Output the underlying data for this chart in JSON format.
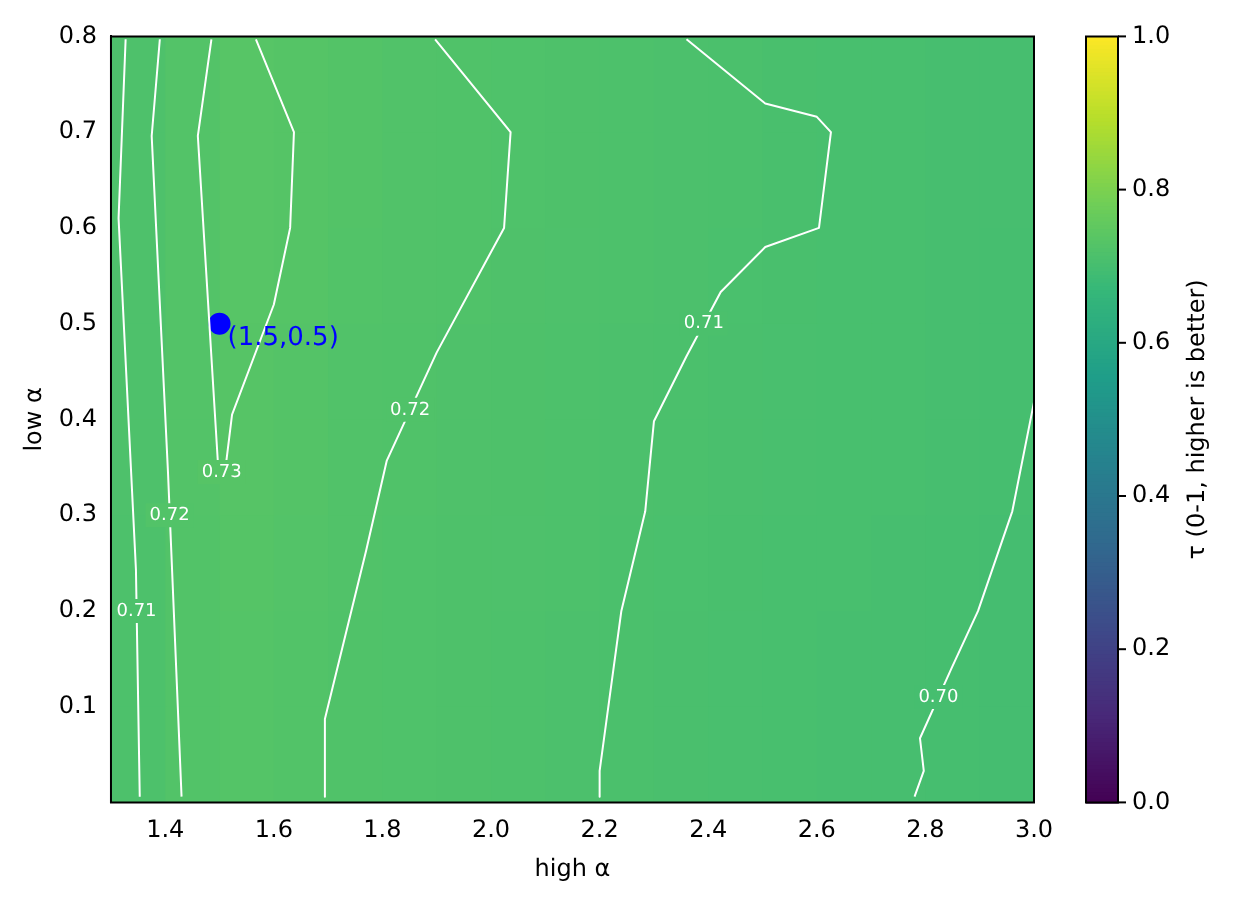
{
  "chart_data": {
    "type": "heatmap",
    "xlabel": "high α",
    "ylabel": "low α",
    "clabel": "τ (0-1, higher is better)",
    "x": [
      1.35,
      1.45,
      1.55,
      1.65,
      1.75,
      1.85,
      1.95,
      2.05,
      2.15,
      2.25,
      2.35,
      2.45,
      2.55,
      2.65,
      2.75,
      2.85,
      2.95
    ],
    "cells": [
      [
        0.715,
        0.725,
        0.732,
        0.73,
        0.726,
        0.722,
        0.72,
        0.718,
        0.716,
        0.714,
        0.712,
        0.709,
        0.706,
        0.704,
        0.703,
        0.702,
        0.701
      ],
      [
        0.715,
        0.725,
        0.732,
        0.73,
        0.726,
        0.722,
        0.72,
        0.718,
        0.716,
        0.714,
        0.712,
        0.709,
        0.706,
        0.704,
        0.703,
        0.702,
        0.701
      ],
      [
        0.715,
        0.725,
        0.732,
        0.729,
        0.724,
        0.721,
        0.719,
        0.717,
        0.715,
        0.713,
        0.711,
        0.708,
        0.706,
        0.704,
        0.703,
        0.701,
        0.7
      ],
      [
        0.715,
        0.725,
        0.731,
        0.727,
        0.722,
        0.719,
        0.717,
        0.716,
        0.714,
        0.712,
        0.709,
        0.707,
        0.705,
        0.704,
        0.703,
        0.701,
        0.699
      ],
      [
        0.715,
        0.725,
        0.731,
        0.727,
        0.722,
        0.719,
        0.717,
        0.716,
        0.714,
        0.712,
        0.709,
        0.707,
        0.705,
        0.704,
        0.703,
        0.701,
        0.699
      ],
      [
        0.714,
        0.724,
        0.729,
        0.725,
        0.721,
        0.718,
        0.716,
        0.715,
        0.713,
        0.71,
        0.708,
        0.706,
        0.704,
        0.703,
        0.702,
        0.7,
        0.698
      ],
      [
        0.714,
        0.724,
        0.728,
        0.724,
        0.72,
        0.718,
        0.716,
        0.714,
        0.712,
        0.709,
        0.707,
        0.705,
        0.703,
        0.702,
        0.701,
        0.699,
        0.697
      ],
      [
        0.714,
        0.724,
        0.728,
        0.724,
        0.72,
        0.718,
        0.716,
        0.714,
        0.712,
        0.709,
        0.707,
        0.705,
        0.703,
        0.702,
        0.701,
        0.699,
        0.697
      ]
    ],
    "clim": [
      0,
      1
    ],
    "cticks": [
      {
        "value": 0,
        "label": "0.0"
      },
      0.2,
      0.4,
      0.6,
      0.8,
      {
        "value": 1,
        "label": "1.0"
      }
    ],
    "xlim": [
      1.3,
      3.0
    ],
    "ylim": [
      0,
      0.8
    ],
    "xticks": [
      1.4,
      1.6,
      1.8,
      {
        "value": 2,
        "label": "2.0"
      },
      2.2,
      2.4,
      2.6,
      2.8,
      {
        "value": 3,
        "label": "3.0"
      }
    ],
    "yticks": [
      0.1,
      0.2,
      0.3,
      0.4,
      0.5,
      0.6,
      0.7,
      0.8
    ],
    "series": [
      {
        "type": "line",
        "color": "#ffffff",
        "marker": "none",
        "x": [
          1.327,
          1.314,
          1.346,
          1.353
        ],
        "values": [
          0.797,
          0.61,
          0.243,
          0.006
        ]
      },
      {
        "type": "line",
        "color": "#ffffff",
        "marker": "none",
        "x": [
          1.39,
          1.375,
          1.405,
          1.43
        ],
        "values": [
          0.797,
          0.696,
          0.345,
          0.006
        ]
      },
      {
        "type": "line",
        "color": "#ffffff",
        "marker": "none",
        "x": [
          1.485,
          1.46,
          1.498,
          1.51,
          1.523,
          1.6,
          1.63,
          1.637,
          1.567
        ],
        "values": [
          0.797,
          0.696,
          0.345,
          0.345,
          0.405,
          0.52,
          0.6,
          0.7,
          0.797
        ]
      },
      {
        "type": "line",
        "color": "#ffffff",
        "marker": "none",
        "x": [
          1.897,
          2.036,
          2.024,
          1.9,
          1.808,
          1.77,
          1.694,
          1.694
        ],
        "values": [
          0.797,
          0.7,
          0.6,
          0.47,
          0.357,
          0.263,
          0.087,
          0.006
        ]
      },
      {
        "type": "line",
        "color": "#ffffff",
        "marker": "none",
        "x": [
          2.36,
          2.505,
          2.6,
          2.626,
          2.604,
          2.505,
          2.423,
          2.36,
          2.3,
          2.284,
          2.24,
          2.2,
          2.2
        ],
        "values": [
          0.797,
          0.73,
          0.716,
          0.7,
          0.6,
          0.58,
          0.533,
          0.466,
          0.398,
          0.304,
          0.2,
          0.033,
          0.006
        ]
      },
      {
        "type": "line",
        "color": "#ffffff",
        "marker": "none",
        "x": [
          3.0,
          2.96,
          2.897,
          2.848,
          2.79,
          2.797,
          2.78
        ],
        "values": [
          0.418,
          0.304,
          0.2,
          0.14,
          0.067,
          0.033,
          0.006
        ]
      },
      {
        "type": "scatter",
        "color": "#0000ff",
        "marker": "circle",
        "x": [
          1.5
        ],
        "values": [
          0.5
        ],
        "value_labels": [
          "(1.5,0.5)"
        ]
      }
    ],
    "annotations": [
      {
        "text": "0.71",
        "x": 1.347,
        "y": 0.2
      },
      {
        "text": "0.72",
        "x": 1.408,
        "y": 0.3
      },
      {
        "text": "0.73",
        "x": 1.504,
        "y": 0.345
      },
      {
        "text": "0.72",
        "x": 1.851,
        "y": 0.41
      },
      {
        "text": "0.71",
        "x": 2.392,
        "y": 0.5
      },
      {
        "text": "0.70",
        "x": 2.824,
        "y": 0.11
      }
    ],
    "legend": false,
    "grid": false
  }
}
